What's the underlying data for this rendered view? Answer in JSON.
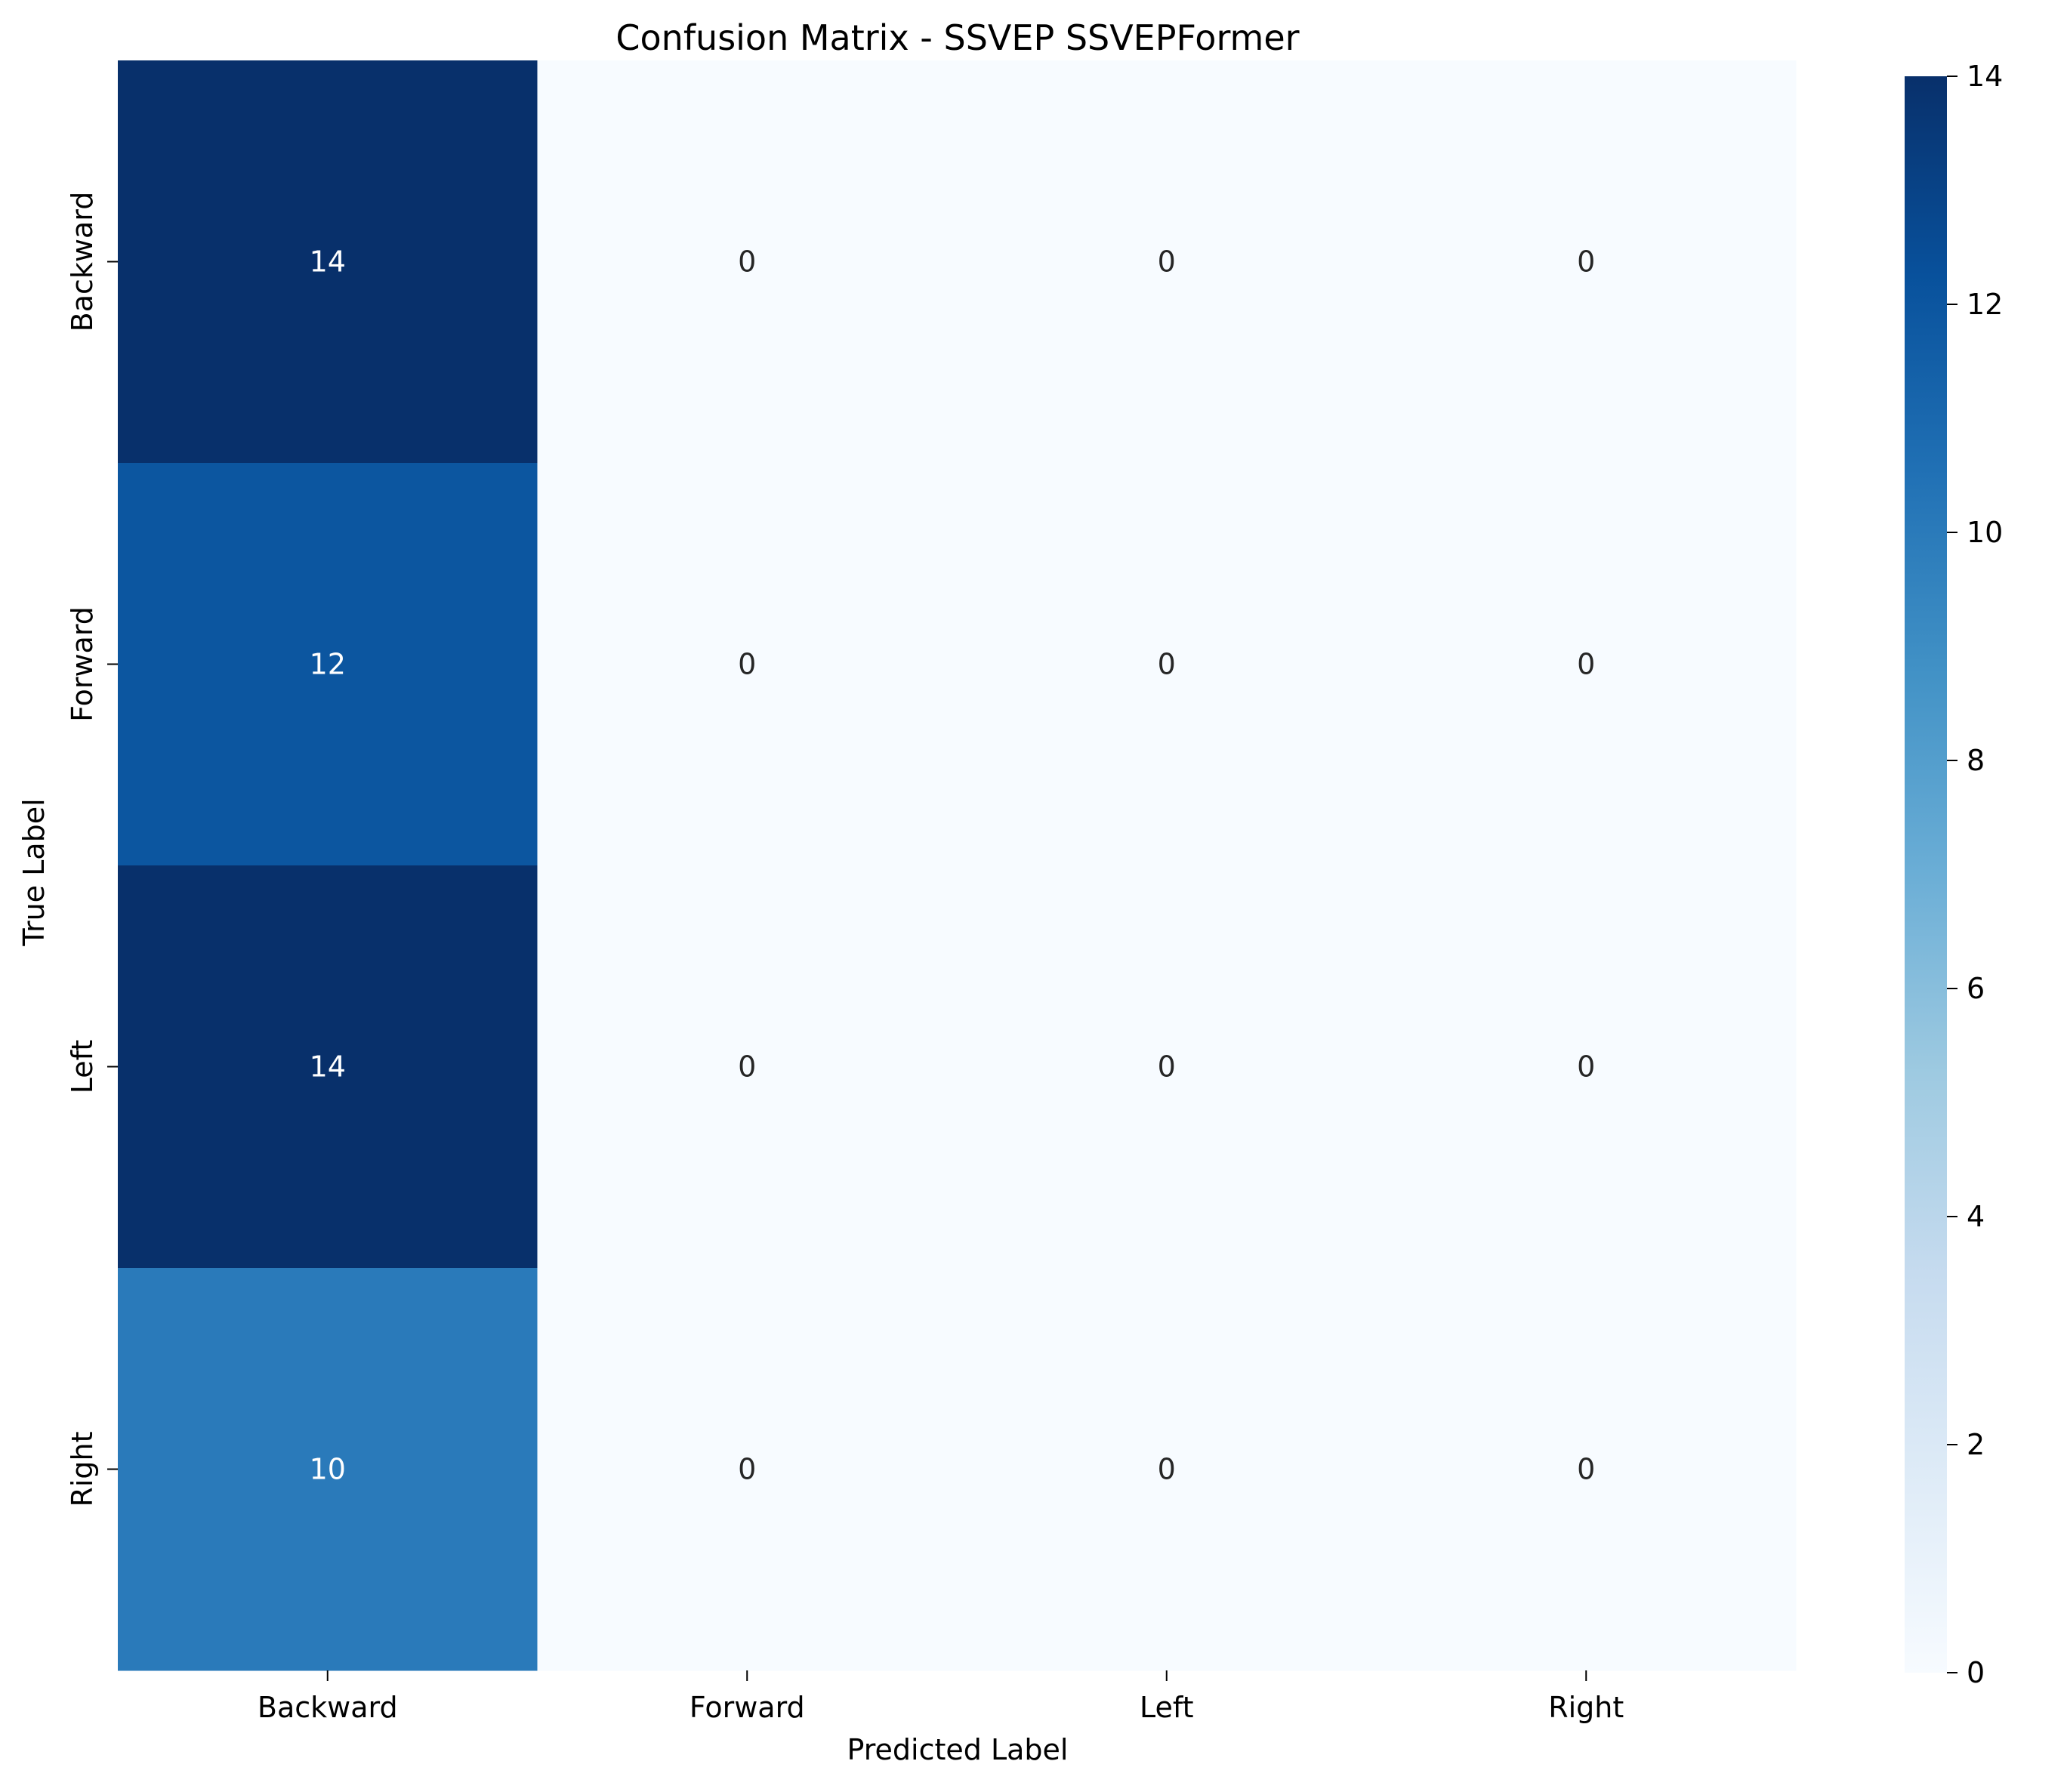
{
  "chart_data": {
    "type": "heatmap",
    "title": "Confusion Matrix - SSVEP SSVEPFormer",
    "xlabel": "Predicted Label",
    "ylabel": "True Label",
    "x_categories": [
      "Backward",
      "Forward",
      "Left",
      "Right"
    ],
    "y_categories": [
      "Backward",
      "Forward",
      "Left",
      "Right"
    ],
    "values": [
      [
        14,
        0,
        0,
        0
      ],
      [
        12,
        0,
        0,
        0
      ],
      [
        14,
        0,
        0,
        0
      ],
      [
        10,
        0,
        0,
        0
      ]
    ],
    "colormap": "Blues",
    "colorbar": {
      "range": [
        0,
        14
      ],
      "ticks": [
        "0",
        "2",
        "4",
        "6",
        "8",
        "10",
        "12",
        "14"
      ]
    },
    "colors": {
      "low": "#f7fbff",
      "high": "#08306b",
      "dark_text": "#262626",
      "light_text": "#ffffff"
    }
  }
}
